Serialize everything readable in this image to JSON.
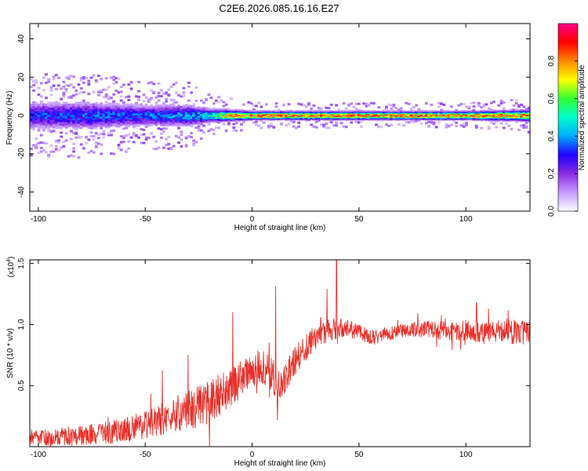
{
  "figure": {
    "title": "C2E6.2026.085.16.16.E27"
  },
  "chart_data": [
    {
      "type": "heatmap",
      "xlabel": "Height of straight line (km)",
      "ylabel": "Frequency (Hz)",
      "xlim": [
        -104,
        130
      ],
      "ylim": [
        -50,
        48
      ],
      "xticks": [
        -100,
        -50,
        0,
        50,
        100
      ],
      "yticks": [
        -40,
        -20,
        0,
        20,
        40
      ],
      "grid": false,
      "colorbar": {
        "label": "Normalized spectral amplitude",
        "range": [
          0,
          1
        ],
        "ticks": [
          "0.0",
          "0.2",
          "0.4",
          "0.6",
          "0.8"
        ],
        "colors": [
          "#ffffff",
          "#c49cff",
          "#8a2be2",
          "#2200ff",
          "#00aaff",
          "#00ffcc",
          "#33ff33",
          "#ffff00",
          "#ff8800",
          "#ff0000",
          "#ff0088"
        ]
      },
      "spread_hz": [
        {
          "x": -104,
          "half_width": 10,
          "peak": 0.35
        },
        {
          "x": -75,
          "half_width": 10,
          "peak": 0.4
        },
        {
          "x": -50,
          "half_width": 8,
          "peak": 0.38
        },
        {
          "x": -30,
          "half_width": 8,
          "peak": 0.45
        },
        {
          "x": -20,
          "half_width": 5,
          "peak": 0.55
        },
        {
          "x": -10,
          "half_width": 4,
          "peak": 0.85
        },
        {
          "x": 0,
          "half_width": 3,
          "peak": 0.95
        },
        {
          "x": 50,
          "half_width": 3,
          "peak": 0.95
        },
        {
          "x": 100,
          "half_width": 3,
          "peak": 0.95
        },
        {
          "x": 130,
          "half_width": 4,
          "peak": 0.9
        }
      ]
    },
    {
      "type": "line",
      "xlabel": "Height of straight line (km)",
      "ylabel": "SNR (10 * v/v)",
      "y_multiplier": "(x10",
      "y_multiplier_exp": "4",
      "y_multiplier_close": ")",
      "xlim": [
        -104,
        130
      ],
      "ylim": [
        0,
        1.53
      ],
      "xticks": [
        -100,
        -50,
        0,
        50,
        100
      ],
      "yticks": [
        "0.5",
        "1.0",
        "1.5"
      ],
      "ytick_values": [
        0.5,
        1.0,
        1.5
      ],
      "grid": false,
      "series": [
        {
          "color": "#e8302a",
          "trend_x": [
            -104,
            -90,
            -75,
            -60,
            -50,
            -40,
            -30,
            -20,
            -15,
            -10,
            -5,
            0,
            5,
            10,
            12,
            15,
            20,
            25,
            30,
            35,
            40,
            45,
            50,
            55,
            60,
            65,
            70,
            80,
            90,
            100,
            110,
            120,
            130
          ],
          "trend_y": [
            0.07,
            0.08,
            0.1,
            0.13,
            0.18,
            0.24,
            0.3,
            0.36,
            0.42,
            0.48,
            0.55,
            0.62,
            0.66,
            0.58,
            0.45,
            0.55,
            0.7,
            0.82,
            0.9,
            0.95,
            0.97,
            0.96,
            0.94,
            0.9,
            0.91,
            0.93,
            0.95,
            0.96,
            0.95,
            0.95,
            0.93,
            0.94,
            0.92
          ],
          "noise_x": [
            -104,
            -60,
            -20,
            0,
            30,
            60,
            130
          ],
          "noise_amp": [
            0.06,
            0.1,
            0.18,
            0.16,
            0.1,
            0.05,
            0.11
          ],
          "spikes": [
            {
              "x": -42,
              "y": 0.62
            },
            {
              "x": -30,
              "y": 0.75
            },
            {
              "x": -9,
              "y": 1.1
            },
            {
              "x": 8,
              "y": 0.85
            },
            {
              "x": 11,
              "y": 1.31
            },
            {
              "x": 11.8,
              "y": 0.22
            },
            {
              "x": 32,
              "y": 1.05
            },
            {
              "x": 35,
              "y": 1.29
            },
            {
              "x": 39.5,
              "y": 1.53
            },
            {
              "x": 105,
              "y": 1.18
            }
          ]
        }
      ]
    }
  ]
}
